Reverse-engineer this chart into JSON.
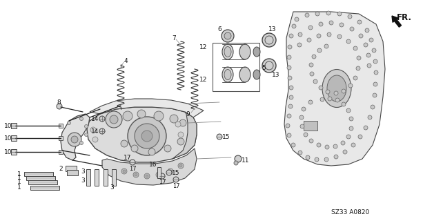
{
  "bg_color": "#ffffff",
  "diagram_code": "SZ33 A0820",
  "fr_label": "FR.",
  "label_fontsize": 6.5,
  "label_color": "#111111",
  "line_color": "#222222",
  "line_color_light": "#888888"
}
